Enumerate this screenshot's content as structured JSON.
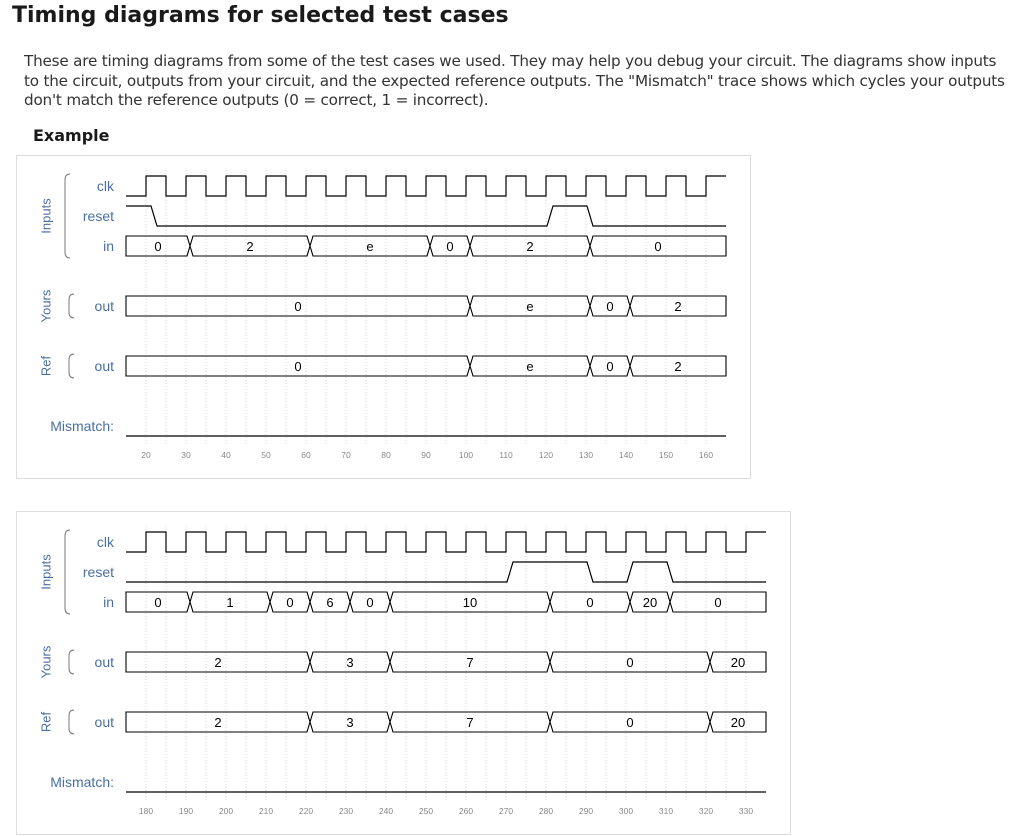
{
  "page": {
    "title": "Timing diagrams for selected test cases",
    "intro": "These are timing diagrams from some of the test cases we used. They may help you debug your circuit. The diagrams show inputs to the circuit, outputs from your circuit, and the expected reference outputs. The \"Mismatch\" trace shows which cycles your outputs don't match the reference outputs (0 = correct, 1 = incorrect).",
    "example_heading": "Example"
  },
  "diagrams": [
    {
      "time_start": 15,
      "time_end": 165,
      "tick_labels": [
        "20",
        "30",
        "40",
        "50",
        "60",
        "70",
        "80",
        "90",
        "100",
        "110",
        "120",
        "130",
        "140",
        "150",
        "160"
      ],
      "groups": [
        {
          "label": "Inputs",
          "signals": [
            "clk",
            "reset",
            "in"
          ]
        },
        {
          "label": "Yours",
          "signals": [
            "out"
          ]
        },
        {
          "label": "Ref",
          "signals": [
            "out"
          ]
        }
      ],
      "mismatch_label": "Mismatch:",
      "signals": [
        {
          "name": "clk",
          "kind": "clock"
        },
        {
          "name": "reset",
          "kind": "bit",
          "initial": 1,
          "edges": [
            [
              22,
              0
            ],
            [
              121,
              1
            ],
            [
              131,
              0
            ]
          ]
        },
        {
          "name": "in",
          "kind": "bus",
          "segments": [
            [
              15,
              31,
              "0"
            ],
            [
              31,
              61,
              "2"
            ],
            [
              61,
              91,
              "e"
            ],
            [
              91,
              101,
              "0"
            ],
            [
              101,
              131,
              "2"
            ],
            [
              131,
              165,
              "0"
            ]
          ]
        },
        {
          "name": "out",
          "kind": "bus",
          "segments": [
            [
              15,
              101,
              "0"
            ],
            [
              101,
              131,
              "e"
            ],
            [
              131,
              141,
              "0"
            ],
            [
              141,
              165,
              "2"
            ]
          ]
        },
        {
          "name": "out",
          "kind": "bus",
          "segments": [
            [
              15,
              101,
              "0"
            ],
            [
              101,
              131,
              "e"
            ],
            [
              131,
              141,
              "0"
            ],
            [
              141,
              165,
              "2"
            ]
          ]
        },
        {
          "name": "Mismatch:",
          "kind": "bit",
          "initial": 0,
          "edges": []
        }
      ]
    },
    {
      "time_start": 175,
      "time_end": 335,
      "tick_labels": [
        "180",
        "190",
        "200",
        "210",
        "220",
        "230",
        "240",
        "250",
        "260",
        "270",
        "280",
        "290",
        "300",
        "310",
        "320",
        "330"
      ],
      "groups": [
        {
          "label": "Inputs",
          "signals": [
            "clk",
            "reset",
            "in"
          ]
        },
        {
          "label": "Yours",
          "signals": [
            "out"
          ]
        },
        {
          "label": "Ref",
          "signals": [
            "out"
          ]
        }
      ],
      "mismatch_label": "Mismatch:",
      "signals": [
        {
          "name": "clk",
          "kind": "clock"
        },
        {
          "name": "reset",
          "kind": "bit",
          "initial": 0,
          "edges": [
            [
              271,
              1
            ],
            [
              291,
              0
            ],
            [
              301,
              1
            ],
            [
              311,
              0
            ]
          ]
        },
        {
          "name": "in",
          "kind": "bus",
          "segments": [
            [
              175,
              191,
              "0"
            ],
            [
              191,
              211,
              "1"
            ],
            [
              211,
              221,
              "0"
            ],
            [
              221,
              231,
              "6"
            ],
            [
              231,
              241,
              "0"
            ],
            [
              241,
              281,
              "10"
            ],
            [
              281,
              301,
              "0"
            ],
            [
              301,
              311,
              "20"
            ],
            [
              311,
              335,
              "0"
            ]
          ]
        },
        {
          "name": "out",
          "kind": "bus",
          "segments": [
            [
              175,
              221,
              "2"
            ],
            [
              221,
              241,
              "3"
            ],
            [
              241,
              281,
              "7"
            ],
            [
              281,
              321,
              "0"
            ],
            [
              321,
              335,
              "20"
            ]
          ]
        },
        {
          "name": "out",
          "kind": "bus",
          "segments": [
            [
              175,
              221,
              "2"
            ],
            [
              221,
              241,
              "3"
            ],
            [
              241,
              281,
              "7"
            ],
            [
              281,
              321,
              "0"
            ],
            [
              321,
              335,
              "20"
            ]
          ]
        },
        {
          "name": "Mismatch:",
          "kind": "bit",
          "initial": 0,
          "edges": []
        }
      ]
    }
  ]
}
